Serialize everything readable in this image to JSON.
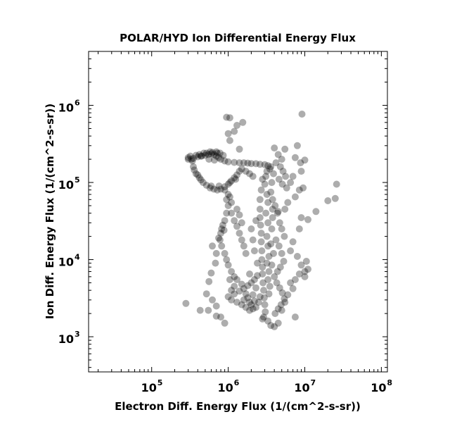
{
  "chart_data": {
    "type": "scatter",
    "title": "POLAR/HYD  Ion Differential Energy Flux",
    "xlabel": "Electron Diff. Energy Flux (1/(cm^2-s-sr))",
    "ylabel": "Ion Diff. Energy Flux (1/(cm^2-s-sr))",
    "x_scale": "log",
    "y_scale": "log",
    "xlim": [
      15000,
      120000000
    ],
    "ylim": [
      350,
      5000000
    ],
    "x_ticks": [
      {
        "base": "10",
        "exp": "5",
        "value": 100000
      },
      {
        "base": "10",
        "exp": "6",
        "value": 1000000
      },
      {
        "base": "10",
        "exp": "7",
        "value": 10000000
      },
      {
        "base": "10",
        "exp": "8",
        "value": 100000000
      }
    ],
    "y_ticks": [
      {
        "base": "10",
        "exp": "3",
        "value": 1000
      },
      {
        "base": "10",
        "exp": "4",
        "value": 10000
      },
      {
        "base": "10",
        "exp": "5",
        "value": 100000
      },
      {
        "base": "10",
        "exp": "6",
        "value": 1000000
      }
    ],
    "grid": false,
    "marker_color": "#000000",
    "marker_alpha": 0.32,
    "points": [
      [
        300000,
        210000
      ],
      [
        350000,
        205000
      ],
      [
        400000,
        215000
      ],
      [
        450000,
        220000
      ],
      [
        500000,
        225000
      ],
      [
        550000,
        230000
      ],
      [
        600000,
        235000
      ],
      [
        650000,
        230000
      ],
      [
        700000,
        220000
      ],
      [
        750000,
        210000
      ],
      [
        800000,
        200000
      ],
      [
        900000,
        190000
      ],
      [
        1000000,
        185000
      ],
      [
        1200000,
        182000
      ],
      [
        1400000,
        180000
      ],
      [
        1600000,
        180000
      ],
      [
        1800000,
        178000
      ],
      [
        2000000,
        176000
      ],
      [
        2300000,
        175000
      ],
      [
        2600000,
        172000
      ],
      [
        3000000,
        170000
      ],
      [
        3300000,
        165000
      ],
      [
        3600000,
        160000
      ],
      [
        330000,
        200000
      ],
      [
        420000,
        230000
      ],
      [
        520000,
        240000
      ],
      [
        620000,
        245000
      ],
      [
        720000,
        240000
      ],
      [
        560000,
        200000
      ],
      [
        660000,
        195000
      ],
      [
        350000,
        160000
      ],
      [
        380000,
        130000
      ],
      [
        420000,
        115000
      ],
      [
        470000,
        100000
      ],
      [
        520000,
        92000
      ],
      [
        580000,
        85000
      ],
      [
        650000,
        82000
      ],
      [
        720000,
        80000
      ],
      [
        800000,
        82000
      ],
      [
        900000,
        88000
      ],
      [
        1000000,
        95000
      ],
      [
        1100000,
        105000
      ],
      [
        1200000,
        115000
      ],
      [
        1300000,
        125000
      ],
      [
        1400000,
        140000
      ],
      [
        1500000,
        150000
      ],
      [
        1700000,
        140000
      ],
      [
        1900000,
        130000
      ],
      [
        2100000,
        120000
      ],
      [
        360000,
        145000
      ],
      [
        400000,
        125000
      ],
      [
        440000,
        108000
      ],
      [
        600000,
        90000
      ],
      [
        760000,
        90000
      ],
      [
        1050000,
        100000
      ],
      [
        1250000,
        110000
      ],
      [
        900000,
        80000
      ],
      [
        1000000,
        70000
      ],
      [
        950000,
        60000
      ],
      [
        1000000,
        50000
      ],
      [
        1100000,
        40000
      ],
      [
        1200000,
        32000
      ],
      [
        1300000,
        27000
      ],
      [
        1400000,
        22000
      ],
      [
        1500000,
        18000
      ],
      [
        1600000,
        15000
      ],
      [
        1700000,
        12000
      ],
      [
        1300000,
        45000
      ],
      [
        1400000,
        38000
      ],
      [
        1500000,
        30000
      ],
      [
        850000,
        28000
      ],
      [
        800000,
        22000
      ],
      [
        780000,
        18000
      ],
      [
        820000,
        15000
      ],
      [
        900000,
        12000
      ],
      [
        950000,
        10000
      ],
      [
        1000000,
        8500
      ],
      [
        1100000,
        7000
      ],
      [
        1200000,
        6000
      ],
      [
        880000,
        24000
      ],
      [
        2800000,
        110000
      ],
      [
        2700000,
        80000
      ],
      [
        2600000,
        60000
      ],
      [
        2600000,
        45000
      ],
      [
        2600000,
        35000
      ],
      [
        2650000,
        28000
      ],
      [
        2700000,
        22000
      ],
      [
        2700000,
        17000
      ],
      [
        2750000,
        13000
      ],
      [
        2750000,
        10000
      ],
      [
        2800000,
        8000
      ],
      [
        2800000,
        6500
      ],
      [
        2850000,
        5000
      ],
      [
        2900000,
        4000
      ],
      [
        2950000,
        3200
      ],
      [
        3000000,
        2600
      ],
      [
        3050000,
        2100
      ],
      [
        2900000,
        1800
      ],
      [
        2800000,
        1700
      ],
      [
        3200000,
        140000
      ],
      [
        3100000,
        120000
      ],
      [
        3000000,
        95000
      ],
      [
        3200000,
        70000
      ],
      [
        3300000,
        55000
      ],
      [
        3100000,
        40000
      ],
      [
        3300000,
        30000
      ],
      [
        3200000,
        20000
      ],
      [
        3300000,
        15000
      ],
      [
        3400000,
        11000
      ],
      [
        3200000,
        9000
      ],
      [
        3400000,
        7000
      ],
      [
        3300000,
        5500
      ],
      [
        3500000,
        4500
      ],
      [
        3400000,
        3600
      ],
      [
        2500000,
        2800
      ],
      [
        2300000,
        2400
      ],
      [
        2100000,
        2300
      ],
      [
        1900000,
        2200
      ],
      [
        1700000,
        2400
      ],
      [
        1500000,
        2600
      ],
      [
        1300000,
        2800
      ],
      [
        1100000,
        3000
      ],
      [
        1000000,
        3300
      ],
      [
        1200000,
        3600
      ],
      [
        1400000,
        3900
      ],
      [
        1600000,
        4200
      ],
      [
        1800000,
        4600
      ],
      [
        2000000,
        5000
      ],
      [
        2200000,
        5500
      ],
      [
        2400000,
        6200
      ],
      [
        1800000,
        3200
      ],
      [
        2100000,
        3500
      ],
      [
        1600000,
        3000
      ],
      [
        2300000,
        4300
      ],
      [
        1900000,
        6500
      ],
      [
        2400000,
        9000
      ],
      [
        2200000,
        13000
      ],
      [
        2100000,
        18000
      ],
      [
        2000000,
        25000
      ],
      [
        2300000,
        32000
      ],
      [
        1900000,
        2800
      ],
      [
        1700000,
        3600
      ],
      [
        2000000,
        2600
      ],
      [
        2200000,
        2900
      ],
      [
        2600000,
        3300
      ],
      [
        1500000,
        4800
      ],
      [
        1300000,
        5500
      ],
      [
        1200000,
        4500
      ],
      [
        1100000,
        4000
      ],
      [
        1050000,
        5500
      ],
      [
        950000,
        700000
      ],
      [
        1050000,
        690000
      ],
      [
        1550000,
        600000
      ],
      [
        1300000,
        550000
      ],
      [
        1000000,
        430000
      ],
      [
        1200000,
        460000
      ],
      [
        1050000,
        350000
      ],
      [
        1400000,
        270000
      ],
      [
        9200000,
        770000
      ],
      [
        8000000,
        300000
      ],
      [
        5500000,
        270000
      ],
      [
        7500000,
        210000
      ],
      [
        8800000,
        180000
      ],
      [
        10000000,
        195000
      ],
      [
        9000000,
        140000
      ],
      [
        7000000,
        120000
      ],
      [
        6500000,
        100000
      ],
      [
        8500000,
        80000
      ],
      [
        9500000,
        85000
      ],
      [
        7500000,
        65000
      ],
      [
        6000000,
        55000
      ],
      [
        5500000,
        45000
      ],
      [
        4500000,
        42000
      ],
      [
        9000000,
        35000
      ],
      [
        8500000,
        25000
      ],
      [
        7000000,
        17000
      ],
      [
        6500000,
        13000
      ],
      [
        8000000,
        11000
      ],
      [
        9000000,
        8500
      ],
      [
        10000000,
        7000
      ],
      [
        8500000,
        6500
      ],
      [
        7500000,
        5500
      ],
      [
        6500000,
        5000
      ],
      [
        7000000,
        4200
      ],
      [
        6000000,
        3500
      ],
      [
        5500000,
        2800
      ],
      [
        5000000,
        2200
      ],
      [
        7500000,
        1800
      ],
      [
        4500000,
        1500
      ],
      [
        4000000,
        1350
      ],
      [
        3600000,
        1400
      ],
      [
        3300000,
        1600
      ],
      [
        10500000,
        9500
      ],
      [
        11000000,
        7500
      ],
      [
        10000000,
        6000
      ],
      [
        26000000,
        95000
      ],
      [
        25000000,
        62000
      ],
      [
        20000000,
        58000
      ],
      [
        14000000,
        42000
      ],
      [
        11000000,
        33000
      ],
      [
        280000,
        2700
      ],
      [
        430000,
        2200
      ],
      [
        550000,
        2200
      ],
      [
        620000,
        3000
      ],
      [
        700000,
        2500
      ],
      [
        800000,
        1800
      ],
      [
        900000,
        1500
      ],
      [
        700000,
        1850
      ],
      [
        520000,
        3600
      ],
      [
        560000,
        5200
      ],
      [
        600000,
        6700
      ],
      [
        680000,
        9000
      ],
      [
        700000,
        12000
      ],
      [
        620000,
        15000
      ],
      [
        750000,
        19000
      ],
      [
        820000,
        25000
      ],
      [
        900000,
        32000
      ],
      [
        950000,
        40000
      ],
      [
        1100000,
        55000
      ],
      [
        1050000,
        65000
      ],
      [
        4000000,
        280000
      ],
      [
        4500000,
        230000
      ],
      [
        5000000,
        200000
      ],
      [
        4200000,
        180000
      ],
      [
        4800000,
        160000
      ],
      [
        5200000,
        140000
      ],
      [
        5600000,
        120000
      ],
      [
        4600000,
        110000
      ],
      [
        5100000,
        95000
      ],
      [
        5800000,
        85000
      ],
      [
        3800000,
        60000
      ],
      [
        4100000,
        50000
      ],
      [
        4400000,
        40000
      ],
      [
        4700000,
        30000
      ],
      [
        5000000,
        25000
      ],
      [
        5400000,
        20000
      ],
      [
        4200000,
        18000
      ],
      [
        4600000,
        15000
      ],
      [
        5000000,
        12000
      ],
      [
        5300000,
        9500
      ],
      [
        4800000,
        8000
      ],
      [
        4400000,
        7000
      ],
      [
        4000000,
        6000
      ],
      [
        4300000,
        5000
      ],
      [
        4700000,
        4300
      ],
      [
        5100000,
        3700
      ],
      [
        5400000,
        3100
      ],
      [
        4900000,
        2600
      ],
      [
        4500000,
        2300
      ],
      [
        4100000,
        2000
      ],
      [
        3700000,
        25000
      ],
      [
        3800000,
        45000
      ],
      [
        3600000,
        75000
      ],
      [
        3700000,
        100000
      ],
      [
        3900000,
        130000
      ],
      [
        3500000,
        150000
      ],
      [
        3800000,
        35000
      ],
      [
        3600000,
        16000
      ],
      [
        3900000,
        12000
      ],
      [
        3700000,
        8500
      ],
      [
        780000,
        240000
      ],
      [
        860000,
        225000
      ],
      [
        700000,
        250000
      ],
      [
        580000,
        250000
      ],
      [
        480000,
        240000
      ],
      [
        440000,
        220000
      ],
      [
        380000,
        225000
      ],
      [
        320000,
        220000
      ],
      [
        300000,
        200000
      ],
      [
        340000,
        190000
      ]
    ]
  }
}
